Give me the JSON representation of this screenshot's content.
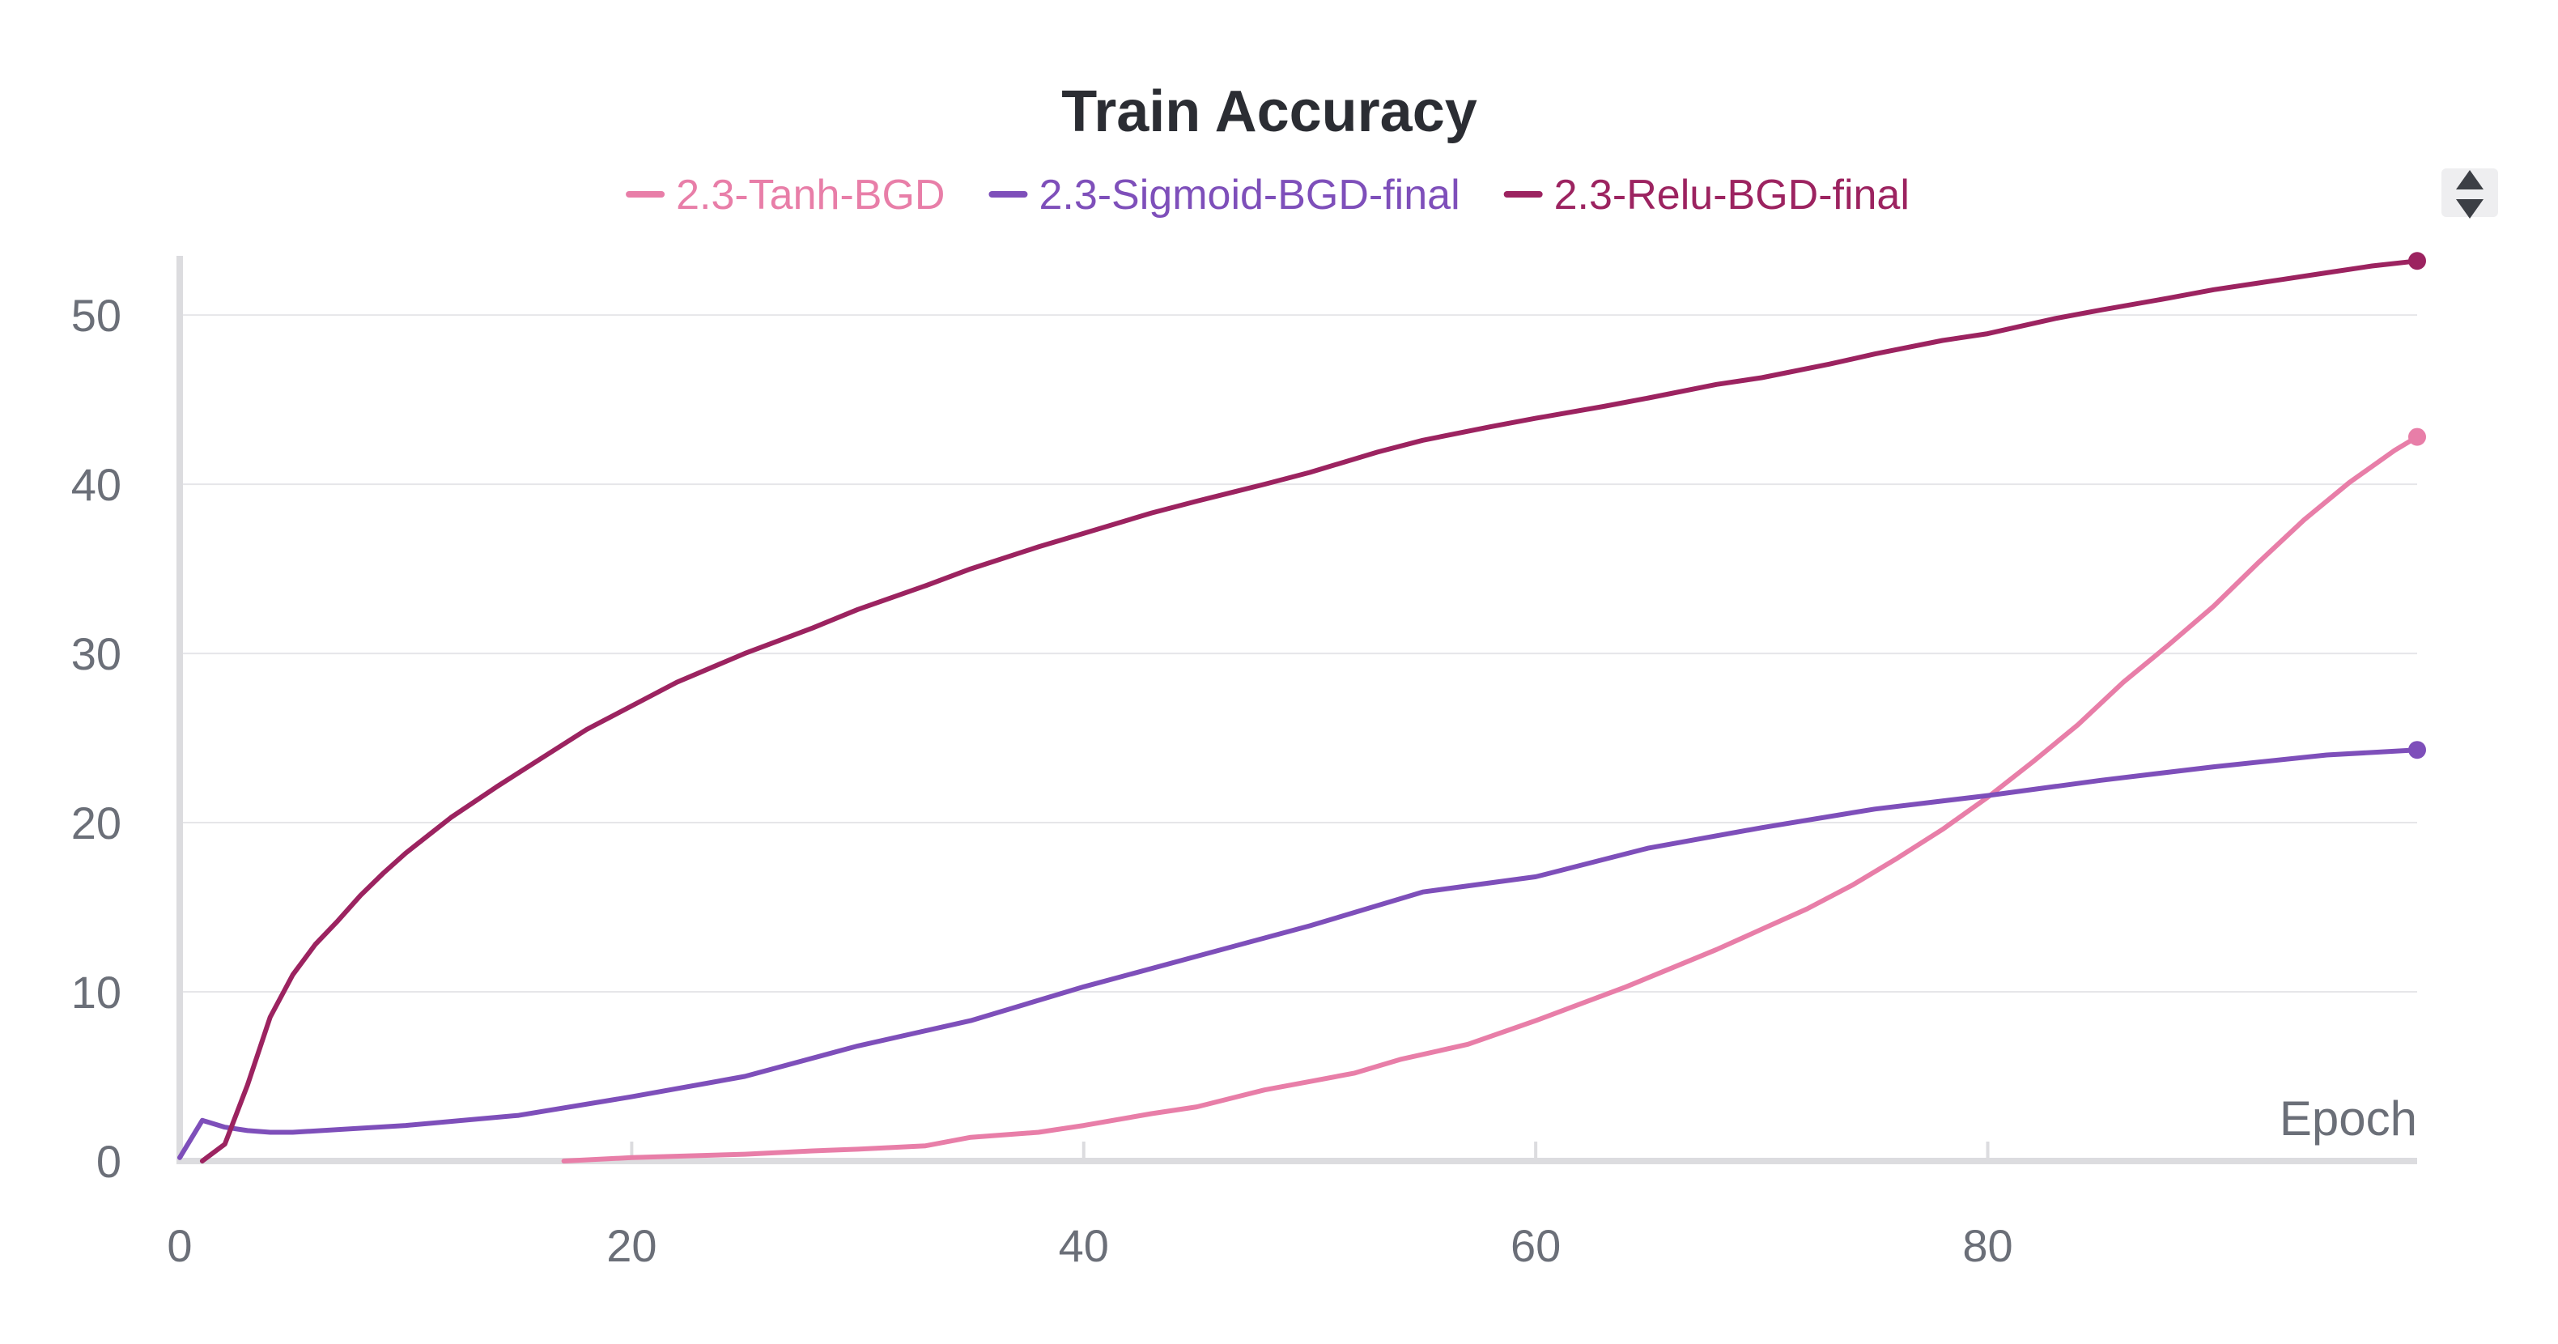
{
  "chart_data": {
    "type": "line",
    "title": "Train Accuracy",
    "xlabel": "Epoch",
    "ylabel": "",
    "xlim": [
      0,
      99
    ],
    "ylim": [
      0,
      53.5
    ],
    "x_ticks": [
      0,
      20,
      40,
      60,
      80
    ],
    "y_ticks": [
      0,
      10,
      20,
      30,
      40,
      50
    ],
    "grid": true,
    "legend_position": "top",
    "series": [
      {
        "name": "2.3-Tanh-BGD",
        "color": "#e87ea8",
        "x": [
          17,
          20,
          25,
          28,
          30,
          33,
          35,
          38,
          40,
          43,
          45,
          48,
          50,
          52,
          54,
          57,
          60,
          62,
          64,
          66,
          68,
          70,
          72,
          74,
          76,
          78,
          80,
          82,
          84,
          86,
          88,
          90,
          92,
          94,
          96,
          98,
          99
        ],
        "values": [
          0.0,
          0.2,
          0.4,
          0.6,
          0.7,
          0.9,
          1.4,
          1.7,
          2.1,
          2.8,
          3.2,
          4.2,
          4.7,
          5.2,
          6.0,
          6.9,
          8.3,
          9.3,
          10.3,
          11.4,
          12.5,
          13.7,
          14.9,
          16.3,
          17.9,
          19.6,
          21.5,
          23.6,
          25.8,
          28.3,
          30.5,
          32.8,
          35.4,
          37.9,
          40.1,
          42.0,
          42.8
        ]
      },
      {
        "name": "2.3-Sigmoid-BGD-final",
        "color": "#7e4fba",
        "x": [
          0,
          1,
          2,
          3,
          4,
          5,
          10,
          15,
          20,
          25,
          30,
          35,
          40,
          45,
          50,
          55,
          60,
          65,
          70,
          75,
          80,
          85,
          90,
          95,
          99
        ],
        "values": [
          0.2,
          2.4,
          2.0,
          1.8,
          1.7,
          1.7,
          2.1,
          2.7,
          3.8,
          5.0,
          6.8,
          8.3,
          10.3,
          12.1,
          13.9,
          15.9,
          16.8,
          18.5,
          19.7,
          20.8,
          21.6,
          22.5,
          23.3,
          24.0,
          24.3
        ]
      },
      {
        "name": "2.3-Relu-BGD-final",
        "color": "#9c2360",
        "x": [
          1,
          2,
          3,
          4,
          5,
          6,
          7,
          8,
          9,
          10,
          12,
          14,
          16,
          18,
          20,
          22,
          25,
          28,
          30,
          33,
          35,
          38,
          40,
          43,
          45,
          48,
          50,
          53,
          55,
          58,
          60,
          63,
          65,
          68,
          70,
          73,
          75,
          78,
          80,
          83,
          85,
          88,
          90,
          93,
          95,
          97,
          99
        ],
        "values": [
          0.0,
          1.0,
          4.5,
          8.5,
          11.0,
          12.8,
          14.2,
          15.7,
          17.0,
          18.2,
          20.3,
          22.1,
          23.8,
          25.5,
          26.9,
          28.3,
          30.0,
          31.5,
          32.6,
          34.0,
          35.0,
          36.3,
          37.1,
          38.3,
          39.0,
          40.0,
          40.7,
          41.9,
          42.6,
          43.4,
          43.9,
          44.6,
          45.1,
          45.9,
          46.3,
          47.1,
          47.7,
          48.5,
          48.9,
          49.8,
          50.3,
          51.0,
          51.5,
          52.1,
          52.5,
          52.9,
          53.2
        ]
      }
    ]
  },
  "legend_control_icon": "sort-toggle-icon"
}
